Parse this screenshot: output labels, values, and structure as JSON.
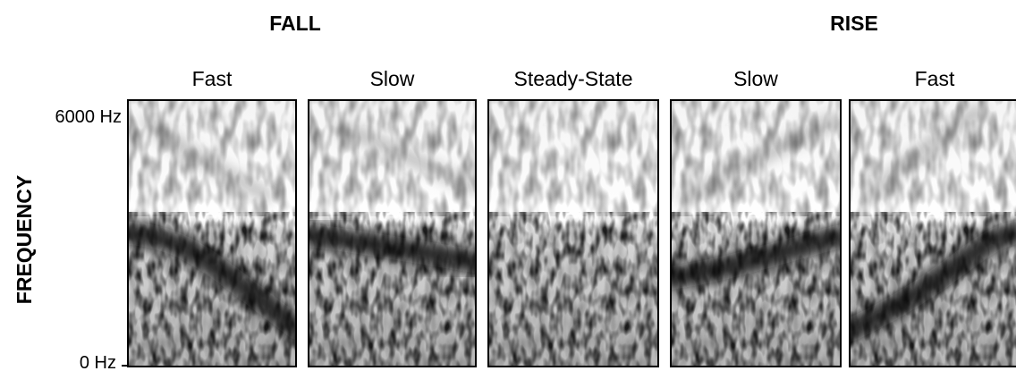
{
  "groups": [
    {
      "label": "FALL"
    },
    {
      "label": "RISE"
    }
  ],
  "axis": {
    "label": "FREQUENCY",
    "top_label": "6000 Hz",
    "bottom_label": "0 Hz"
  },
  "panels": [
    {
      "title": "Fast"
    },
    {
      "title": "Slow"
    },
    {
      "title": "Steady-State"
    },
    {
      "title": "Slow"
    },
    {
      "title": "Fast"
    }
  ]
}
